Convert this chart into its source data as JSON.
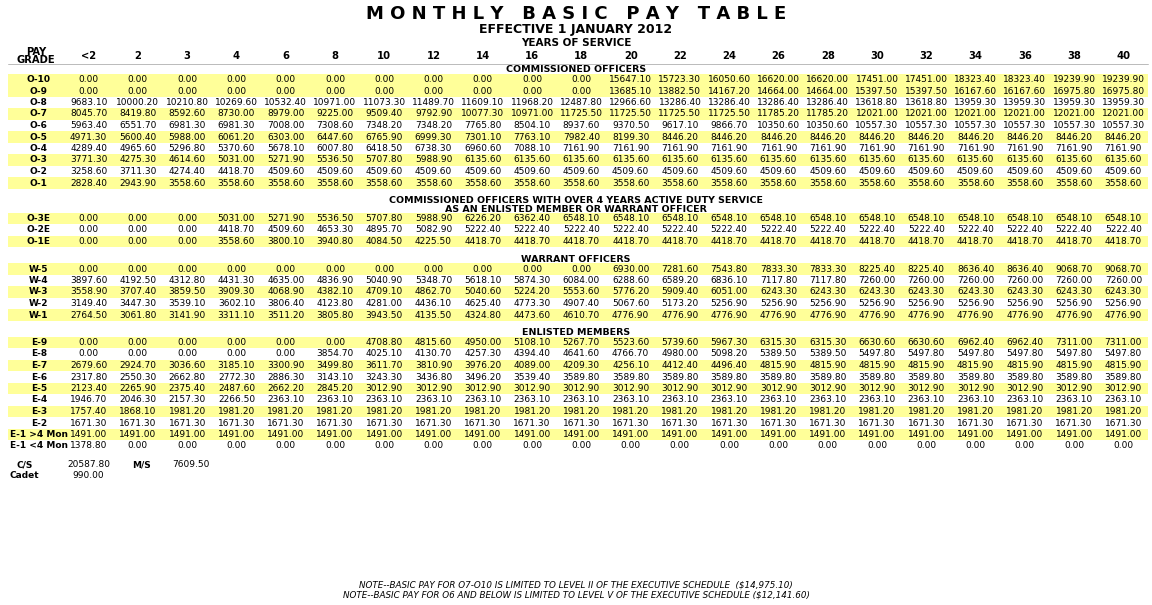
{
  "title": "M O N T H L Y   B A S I C   P A Y   T A B L E",
  "subtitle": "EFFECTIVE 1 JANUARY 2012",
  "years_label": "YEARS OF SERVICE",
  "col_headers": [
    "<2",
    "2",
    "3",
    "4",
    "6",
    "8",
    "10",
    "12",
    "14",
    "16",
    "18",
    "20",
    "22",
    "24",
    "26",
    "28",
    "30",
    "32",
    "34",
    "36",
    "38",
    "40"
  ],
  "sections": [
    {
      "label": "COMMISSIONED OFFICERS",
      "rows": [
        [
          "O-10",
          "0.00",
          "0.00",
          "0.00",
          "0.00",
          "0.00",
          "0.00",
          "0.00",
          "0.00",
          "0.00",
          "0.00",
          "0.00",
          "15647.10",
          "15723.30",
          "16050.60",
          "16620.00",
          "16620.00",
          "17451.00",
          "17451.00",
          "18323.40",
          "18323.40",
          "19239.90",
          "19239.90"
        ],
        [
          "O-9",
          "0.00",
          "0.00",
          "0.00",
          "0.00",
          "0.00",
          "0.00",
          "0.00",
          "0.00",
          "0.00",
          "0.00",
          "0.00",
          "13685.10",
          "13882.50",
          "14167.20",
          "14664.00",
          "14664.00",
          "15397.50",
          "15397.50",
          "16167.60",
          "16167.60",
          "16975.80",
          "16975.80"
        ],
        [
          "O-8",
          "9683.10",
          "10000.20",
          "10210.80",
          "10269.60",
          "10532.40",
          "10971.00",
          "11073.30",
          "11489.70",
          "11609.10",
          "11968.20",
          "12487.80",
          "12966.60",
          "13286.40",
          "13286.40",
          "13286.40",
          "13286.40",
          "13618.80",
          "13618.80",
          "13959.30",
          "13959.30",
          "13959.30",
          "13959.30"
        ],
        [
          "O-7",
          "8045.70",
          "8419.80",
          "8592.60",
          "8730.00",
          "8979.00",
          "9225.00",
          "9509.40",
          "9792.90",
          "10077.30",
          "10971.00",
          "11725.50",
          "11725.50",
          "11725.50",
          "11725.50",
          "11785.20",
          "11785.20",
          "12021.00",
          "12021.00",
          "12021.00",
          "12021.00",
          "12021.00",
          "12021.00"
        ],
        [
          "O-6",
          "5963.40",
          "6551.70",
          "6981.30",
          "6981.30",
          "7008.00",
          "7308.60",
          "7348.20",
          "7348.20",
          "7765.80",
          "8504.10",
          "8937.60",
          "9370.50",
          "9617.10",
          "9866.70",
          "10350.60",
          "10350.60",
          "10557.30",
          "10557.30",
          "10557.30",
          "10557.30",
          "10557.30",
          "10557.30"
        ],
        [
          "O-5",
          "4971.30",
          "5600.40",
          "5988.00",
          "6061.20",
          "6303.00",
          "6447.60",
          "6765.90",
          "6999.30",
          "7301.10",
          "7763.10",
          "7982.40",
          "8199.30",
          "8446.20",
          "8446.20",
          "8446.20",
          "8446.20",
          "8446.20",
          "8446.20",
          "8446.20",
          "8446.20",
          "8446.20",
          "8446.20"
        ],
        [
          "O-4",
          "4289.40",
          "4965.60",
          "5296.80",
          "5370.60",
          "5678.10",
          "6007.80",
          "6418.50",
          "6738.30",
          "6960.60",
          "7088.10",
          "7161.90",
          "7161.90",
          "7161.90",
          "7161.90",
          "7161.90",
          "7161.90",
          "7161.90",
          "7161.90",
          "7161.90",
          "7161.90",
          "7161.90",
          "7161.90"
        ],
        [
          "O-3",
          "3771.30",
          "4275.30",
          "4614.60",
          "5031.00",
          "5271.90",
          "5536.50",
          "5707.80",
          "5988.90",
          "6135.60",
          "6135.60",
          "6135.60",
          "6135.60",
          "6135.60",
          "6135.60",
          "6135.60",
          "6135.60",
          "6135.60",
          "6135.60",
          "6135.60",
          "6135.60",
          "6135.60",
          "6135.60"
        ],
        [
          "O-2",
          "3258.60",
          "3711.30",
          "4274.40",
          "4418.70",
          "4509.60",
          "4509.60",
          "4509.60",
          "4509.60",
          "4509.60",
          "4509.60",
          "4509.60",
          "4509.60",
          "4509.60",
          "4509.60",
          "4509.60",
          "4509.60",
          "4509.60",
          "4509.60",
          "4509.60",
          "4509.60",
          "4509.60",
          "4509.60"
        ],
        [
          "O-1",
          "2828.40",
          "2943.90",
          "3558.60",
          "3558.60",
          "3558.60",
          "3558.60",
          "3558.60",
          "3558.60",
          "3558.60",
          "3558.60",
          "3558.60",
          "3558.60",
          "3558.60",
          "3558.60",
          "3558.60",
          "3558.60",
          "3558.60",
          "3558.60",
          "3558.60",
          "3558.60",
          "3558.60",
          "3558.60"
        ]
      ],
      "highlight_rows": [
        0,
        1,
        3,
        5,
        7,
        9
      ]
    },
    {
      "label1": "COMMISSIONED OFFICERS WITH OVER 4 YEARS ACTIVE DUTY SERVICE",
      "label2": "AS AN ENLISTED MEMBER OR WARRANT OFFICER",
      "rows": [
        [
          "O-3E",
          "0.00",
          "0.00",
          "0.00",
          "5031.00",
          "5271.90",
          "5536.50",
          "5707.80",
          "5988.90",
          "6226.20",
          "6362.40",
          "6548.10",
          "6548.10",
          "6548.10",
          "6548.10",
          "6548.10",
          "6548.10",
          "6548.10",
          "6548.10",
          "6548.10",
          "6548.10",
          "6548.10",
          "6548.10"
        ],
        [
          "O-2E",
          "0.00",
          "0.00",
          "0.00",
          "4418.70",
          "4509.60",
          "4653.30",
          "4895.70",
          "5082.90",
          "5222.40",
          "5222.40",
          "5222.40",
          "5222.40",
          "5222.40",
          "5222.40",
          "5222.40",
          "5222.40",
          "5222.40",
          "5222.40",
          "5222.40",
          "5222.40",
          "5222.40",
          "5222.40"
        ],
        [
          "O-1E",
          "0.00",
          "0.00",
          "0.00",
          "3558.60",
          "3800.10",
          "3940.80",
          "4084.50",
          "4225.50",
          "4418.70",
          "4418.70",
          "4418.70",
          "4418.70",
          "4418.70",
          "4418.70",
          "4418.70",
          "4418.70",
          "4418.70",
          "4418.70",
          "4418.70",
          "4418.70",
          "4418.70",
          "4418.70"
        ]
      ],
      "highlight_rows": [
        0,
        2
      ]
    },
    {
      "label": "WARRANT OFFICERS",
      "rows": [
        [
          "W-5",
          "0.00",
          "0.00",
          "0.00",
          "0.00",
          "0.00",
          "0.00",
          "0.00",
          "0.00",
          "0.00",
          "0.00",
          "0.00",
          "6930.00",
          "7281.60",
          "7543.80",
          "7833.30",
          "7833.30",
          "8225.40",
          "8225.40",
          "8636.40",
          "8636.40",
          "9068.70",
          "9068.70"
        ],
        [
          "W-4",
          "3897.60",
          "4192.50",
          "4312.80",
          "4431.30",
          "4635.00",
          "4836.90",
          "5040.90",
          "5348.70",
          "5618.10",
          "5874.30",
          "6084.00",
          "6288.60",
          "6589.20",
          "6836.10",
          "7117.80",
          "7117.80",
          "7260.00",
          "7260.00",
          "7260.00",
          "7260.00",
          "7260.00",
          "7260.00"
        ],
        [
          "W-3",
          "3558.90",
          "3707.40",
          "3859.50",
          "3909.30",
          "4068.90",
          "4382.10",
          "4709.10",
          "4862.70",
          "5040.60",
          "5224.20",
          "5553.60",
          "5776.20",
          "5909.40",
          "6051.00",
          "6243.30",
          "6243.30",
          "6243.30",
          "6243.30",
          "6243.30",
          "6243.30",
          "6243.30",
          "6243.30"
        ],
        [
          "W-2",
          "3149.40",
          "3447.30",
          "3539.10",
          "3602.10",
          "3806.40",
          "4123.80",
          "4281.00",
          "4436.10",
          "4625.40",
          "4773.30",
          "4907.40",
          "5067.60",
          "5173.20",
          "5256.90",
          "5256.90",
          "5256.90",
          "5256.90",
          "5256.90",
          "5256.90",
          "5256.90",
          "5256.90",
          "5256.90"
        ],
        [
          "W-1",
          "2764.50",
          "3061.80",
          "3141.90",
          "3311.10",
          "3511.20",
          "3805.80",
          "3943.50",
          "4135.50",
          "4324.80",
          "4473.60",
          "4610.70",
          "4776.90",
          "4776.90",
          "4776.90",
          "4776.90",
          "4776.90",
          "4776.90",
          "4776.90",
          "4776.90",
          "4776.90",
          "4776.90",
          "4776.90"
        ]
      ],
      "highlight_rows": [
        0,
        2,
        4
      ]
    },
    {
      "label": "ENLISTED MEMBERS",
      "rows": [
        [
          "E-9",
          "0.00",
          "0.00",
          "0.00",
          "0.00",
          "0.00",
          "0.00",
          "4708.80",
          "4815.60",
          "4950.00",
          "5108.10",
          "5267.70",
          "5523.60",
          "5739.60",
          "5967.30",
          "6315.30",
          "6315.30",
          "6630.60",
          "6630.60",
          "6962.40",
          "6962.40",
          "7311.00",
          "7311.00"
        ],
        [
          "E-8",
          "0.00",
          "0.00",
          "0.00",
          "0.00",
          "0.00",
          "3854.70",
          "4025.10",
          "4130.70",
          "4257.30",
          "4394.40",
          "4641.60",
          "4766.70",
          "4980.00",
          "5098.20",
          "5389.50",
          "5389.50",
          "5497.80",
          "5497.80",
          "5497.80",
          "5497.80",
          "5497.80",
          "5497.80"
        ],
        [
          "E-7",
          "2679.60",
          "2924.70",
          "3036.60",
          "3185.10",
          "3300.90",
          "3499.80",
          "3611.70",
          "3810.90",
          "3976.20",
          "4089.00",
          "4209.30",
          "4256.10",
          "4412.40",
          "4496.40",
          "4815.90",
          "4815.90",
          "4815.90",
          "4815.90",
          "4815.90",
          "4815.90",
          "4815.90",
          "4815.90"
        ],
        [
          "E-6",
          "2317.80",
          "2550.30",
          "2662.80",
          "2772.30",
          "2886.30",
          "3143.10",
          "3243.30",
          "3436.80",
          "3496.20",
          "3539.40",
          "3589.80",
          "3589.80",
          "3589.80",
          "3589.80",
          "3589.80",
          "3589.80",
          "3589.80",
          "3589.80",
          "3589.80",
          "3589.80",
          "3589.80",
          "3589.80"
        ],
        [
          "E-5",
          "2123.40",
          "2265.90",
          "2375.40",
          "2487.60",
          "2662.20",
          "2845.20",
          "3012.90",
          "3012.90",
          "3012.90",
          "3012.90",
          "3012.90",
          "3012.90",
          "3012.90",
          "3012.90",
          "3012.90",
          "3012.90",
          "3012.90",
          "3012.90",
          "3012.90",
          "3012.90",
          "3012.90",
          "3012.90"
        ],
        [
          "E-4",
          "1946.70",
          "2046.30",
          "2157.30",
          "2266.50",
          "2363.10",
          "2363.10",
          "2363.10",
          "2363.10",
          "2363.10",
          "2363.10",
          "2363.10",
          "2363.10",
          "2363.10",
          "2363.10",
          "2363.10",
          "2363.10",
          "2363.10",
          "2363.10",
          "2363.10",
          "2363.10",
          "2363.10",
          "2363.10"
        ],
        [
          "E-3",
          "1757.40",
          "1868.10",
          "1981.20",
          "1981.20",
          "1981.20",
          "1981.20",
          "1981.20",
          "1981.20",
          "1981.20",
          "1981.20",
          "1981.20",
          "1981.20",
          "1981.20",
          "1981.20",
          "1981.20",
          "1981.20",
          "1981.20",
          "1981.20",
          "1981.20",
          "1981.20",
          "1981.20",
          "1981.20"
        ],
        [
          "E-2",
          "1671.30",
          "1671.30",
          "1671.30",
          "1671.30",
          "1671.30",
          "1671.30",
          "1671.30",
          "1671.30",
          "1671.30",
          "1671.30",
          "1671.30",
          "1671.30",
          "1671.30",
          "1671.30",
          "1671.30",
          "1671.30",
          "1671.30",
          "1671.30",
          "1671.30",
          "1671.30",
          "1671.30",
          "1671.30"
        ],
        [
          "E-1 >4 Mon",
          "1491.00",
          "1491.00",
          "1491.00",
          "1491.00",
          "1491.00",
          "1491.00",
          "1491.00",
          "1491.00",
          "1491.00",
          "1491.00",
          "1491.00",
          "1491.00",
          "1491.00",
          "1491.00",
          "1491.00",
          "1491.00",
          "1491.00",
          "1491.00",
          "1491.00",
          "1491.00",
          "1491.00",
          "1491.00"
        ],
        [
          "E-1 <4 Mon",
          "1378.80",
          "0.00",
          "0.00",
          "0.00",
          "0.00",
          "0.00",
          "0.00",
          "0.00",
          "0.00",
          "0.00",
          "0.00",
          "0.00",
          "0.00",
          "0.00",
          "0.00",
          "0.00",
          "0.00",
          "0.00",
          "0.00",
          "0.00",
          "0.00",
          "0.00"
        ]
      ],
      "highlight_rows": [
        0,
        2,
        4,
        6,
        8
      ]
    }
  ],
  "notes": [
    "NOTE--BASIC PAY FOR O7-O10 IS LIMITED TO LEVEL II OF THE EXECUTIVE SCHEDULE  ($14,975.10)",
    "NOTE--BASIC PAY FOR O6 AND BELOW IS LIMITED TO LEVEL V OF THE EXECUTIVE SCHEDULE ($12,141.60)"
  ],
  "highlight_color": "#FFFF99",
  "bg_color": "#FFFFFF",
  "text_color": "#000000"
}
